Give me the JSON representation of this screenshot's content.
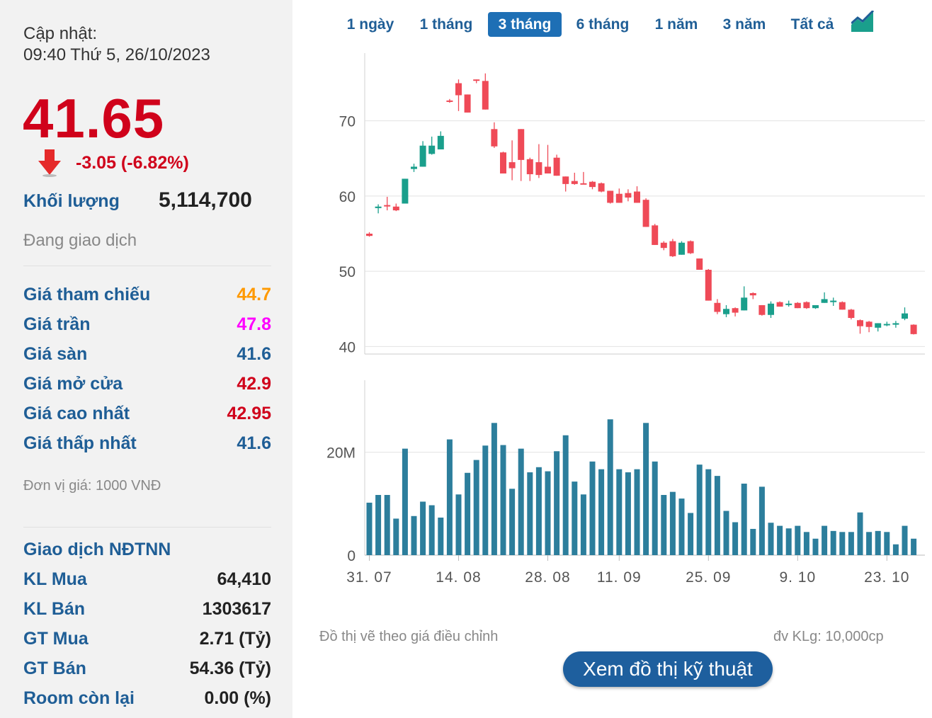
{
  "summary": {
    "updated_label": "Cập nhật:",
    "updated_time": "09:40 Thứ 5, 26/10/2023",
    "price": "41.65",
    "change": "-3.05 (-6.82%)",
    "volume_label": "Khối lượng",
    "volume_value": "5,114,700",
    "status": "Đang giao dịch"
  },
  "prices": [
    {
      "label": "Giá tham chiếu",
      "value": "44.7",
      "color": "#ff9900"
    },
    {
      "label": "Giá trần",
      "value": "47.8",
      "color": "#ff00ff"
    },
    {
      "label": "Giá sàn",
      "value": "41.6",
      "color": "#1f5e96"
    },
    {
      "label": "Giá mở cửa",
      "value": "42.9",
      "color": "#d0021b"
    },
    {
      "label": "Giá cao nhất",
      "value": "42.95",
      "color": "#d0021b"
    },
    {
      "label": "Giá thấp nhất",
      "value": "41.6",
      "color": "#1f5e96"
    }
  ],
  "unit_note": "Đơn vị giá: 1000 VNĐ",
  "foreign": {
    "title": "Giao dịch NĐTNN",
    "rows": [
      {
        "label": "KL Mua",
        "value": "64,410"
      },
      {
        "label": "KL Bán",
        "value": "1303617"
      },
      {
        "label": "GT Mua",
        "value": "2.71 (Tỷ)"
      },
      {
        "label": "GT Bán",
        "value": "54.36 (Tỷ)"
      },
      {
        "label": "Room còn lại",
        "value": "0.00 (%)"
      }
    ]
  },
  "tabs": [
    {
      "label": "1 ngày",
      "active": false
    },
    {
      "label": "1 tháng",
      "active": false
    },
    {
      "label": "3 tháng",
      "active": true
    },
    {
      "label": "6 tháng",
      "active": false
    },
    {
      "label": "1 năm",
      "active": false
    },
    {
      "label": "3 năm",
      "active": false
    },
    {
      "label": "Tất cả",
      "active": false
    }
  ],
  "chart_icon": "area-chart-icon",
  "colors": {
    "up": "#1a9f8c",
    "down": "#ef4a57",
    "volume": "#2c7e9c",
    "accent": "#1e6fb5"
  },
  "chart_data": {
    "type": "candlestick",
    "price_axis": {
      "ticks": [
        40,
        50,
        60,
        70
      ],
      "range": [
        39,
        79
      ]
    },
    "volume_axis": {
      "ticks": [
        0,
        20
      ],
      "tick_labels": [
        "0",
        "20M"
      ],
      "range": [
        0,
        34
      ]
    },
    "x_labels": [
      {
        "label": "31. 07",
        "index": 0
      },
      {
        "label": "14. 08",
        "index": 10
      },
      {
        "label": "28. 08",
        "index": 20
      },
      {
        "label": "11. 09",
        "index": 28
      },
      {
        "label": "25. 09",
        "index": 38
      },
      {
        "label": "9. 10",
        "index": 48
      },
      {
        "label": "23. 10",
        "index": 58
      }
    ],
    "candles": [
      {
        "o": 55.0,
        "h": 55.2,
        "c": 54.7,
        "l": 54.6,
        "v": 10.2
      },
      {
        "o": 58.4,
        "h": 58.9,
        "c": 58.6,
        "l": 57.7,
        "v": 11.7
      },
      {
        "o": 58.8,
        "h": 59.9,
        "c": 58.7,
        "l": 58.1,
        "v": 11.7
      },
      {
        "o": 58.6,
        "h": 59.0,
        "c": 58.1,
        "l": 58.0,
        "v": 7.1
      },
      {
        "o": 59.0,
        "h": 62.3,
        "c": 62.3,
        "l": 59.0,
        "v": 20.7
      },
      {
        "o": 63.6,
        "h": 64.3,
        "c": 63.9,
        "l": 63.2,
        "v": 7.6
      },
      {
        "o": 63.9,
        "h": 67.3,
        "c": 66.7,
        "l": 63.9,
        "v": 10.4
      },
      {
        "o": 65.6,
        "h": 67.9,
        "c": 66.7,
        "l": 65.5,
        "v": 9.7
      },
      {
        "o": 66.2,
        "h": 68.6,
        "c": 68.0,
        "l": 66.2,
        "v": 7.3
      },
      {
        "o": 72.7,
        "h": 72.9,
        "c": 72.6,
        "l": 72.4,
        "v": 22.5
      },
      {
        "o": 75.0,
        "h": 75.5,
        "c": 73.4,
        "l": 71.3,
        "v": 11.8
      },
      {
        "o": 73.5,
        "h": 73.5,
        "c": 71.1,
        "l": 71.1,
        "v": 16.0
      },
      {
        "o": 75.5,
        "h": 75.5,
        "c": 75.4,
        "l": 75.0,
        "v": 18.5
      },
      {
        "o": 75.3,
        "h": 76.3,
        "c": 71.5,
        "l": 71.5,
        "v": 21.3
      },
      {
        "o": 68.9,
        "h": 69.8,
        "c": 66.6,
        "l": 66.4,
        "v": 25.7
      },
      {
        "o": 65.8,
        "h": 65.9,
        "c": 63.0,
        "l": 63.0,
        "v": 21.4
      },
      {
        "o": 64.5,
        "h": 67.4,
        "c": 63.7,
        "l": 62.1,
        "v": 12.9
      },
      {
        "o": 68.9,
        "h": 68.9,
        "c": 64.8,
        "l": 62.0,
        "v": 20.7
      },
      {
        "o": 64.9,
        "h": 65.1,
        "c": 62.9,
        "l": 62.0,
        "v": 16.1
      },
      {
        "o": 64.5,
        "h": 66.9,
        "c": 62.8,
        "l": 62.4,
        "v": 17.1
      },
      {
        "o": 63.9,
        "h": 66.8,
        "c": 63.0,
        "l": 63.0,
        "v": 16.3
      },
      {
        "o": 65.1,
        "h": 65.5,
        "c": 62.7,
        "l": 62.7,
        "v": 20.2
      },
      {
        "o": 62.6,
        "h": 62.6,
        "c": 61.6,
        "l": 60.6,
        "v": 23.3
      },
      {
        "o": 62.0,
        "h": 63.1,
        "c": 61.6,
        "l": 61.5,
        "v": 14.3
      },
      {
        "o": 61.7,
        "h": 63.2,
        "c": 61.6,
        "l": 61.6,
        "v": 11.8
      },
      {
        "o": 61.9,
        "h": 62.0,
        "c": 61.2,
        "l": 60.9,
        "v": 18.2
      },
      {
        "o": 61.7,
        "h": 61.8,
        "c": 60.6,
        "l": 60.5,
        "v": 16.7
      },
      {
        "o": 60.7,
        "h": 60.7,
        "c": 59.1,
        "l": 59.0,
        "v": 26.4
      },
      {
        "o": 60.3,
        "h": 61.0,
        "c": 59.1,
        "l": 59.1,
        "v": 16.7
      },
      {
        "o": 60.4,
        "h": 60.9,
        "c": 59.8,
        "l": 59.3,
        "v": 16.1
      },
      {
        "o": 60.6,
        "h": 61.3,
        "c": 59.1,
        "l": 59.1,
        "v": 16.7
      },
      {
        "o": 59.5,
        "h": 59.7,
        "c": 55.9,
        "l": 55.9,
        "v": 25.7
      },
      {
        "o": 56.1,
        "h": 56.3,
        "c": 53.5,
        "l": 53.5,
        "v": 18.2
      },
      {
        "o": 53.8,
        "h": 54.0,
        "c": 53.1,
        "l": 52.8,
        "v": 11.7
      },
      {
        "o": 54.0,
        "h": 54.3,
        "c": 52.0,
        "l": 51.9,
        "v": 12.3
      },
      {
        "o": 52.2,
        "h": 54.0,
        "c": 53.8,
        "l": 52.2,
        "v": 11.0
      },
      {
        "o": 54.0,
        "h": 54.1,
        "c": 52.4,
        "l": 52.3,
        "v": 8.2
      },
      {
        "o": 51.7,
        "h": 51.7,
        "c": 50.2,
        "l": 50.2,
        "v": 17.6
      },
      {
        "o": 50.2,
        "h": 50.3,
        "c": 46.1,
        "l": 46.1,
        "v": 16.7
      },
      {
        "o": 45.8,
        "h": 46.3,
        "c": 44.6,
        "l": 44.3,
        "v": 15.4
      },
      {
        "o": 44.3,
        "h": 45.5,
        "c": 45.0,
        "l": 43.9,
        "v": 8.6
      },
      {
        "o": 45.1,
        "h": 45.2,
        "c": 44.5,
        "l": 44.0,
        "v": 6.4
      },
      {
        "o": 44.8,
        "h": 48.0,
        "c": 46.5,
        "l": 44.8,
        "v": 13.9
      },
      {
        "o": 47.1,
        "h": 47.2,
        "c": 46.8,
        "l": 46.3,
        "v": 5.1
      },
      {
        "o": 45.5,
        "h": 45.5,
        "c": 44.2,
        "l": 44.1,
        "v": 13.3
      },
      {
        "o": 44.2,
        "h": 46.0,
        "c": 45.7,
        "l": 43.8,
        "v": 6.3
      },
      {
        "o": 45.9,
        "h": 46.0,
        "c": 45.3,
        "l": 45.3,
        "v": 5.7
      },
      {
        "o": 45.6,
        "h": 46.1,
        "c": 45.7,
        "l": 45.3,
        "v": 5.2
      },
      {
        "o": 45.8,
        "h": 45.9,
        "c": 45.1,
        "l": 45.1,
        "v": 5.7
      },
      {
        "o": 45.9,
        "h": 46.0,
        "c": 45.1,
        "l": 45.0,
        "v": 4.5
      },
      {
        "o": 45.1,
        "h": 45.2,
        "c": 45.5,
        "l": 45.0,
        "v": 3.2
      },
      {
        "o": 45.8,
        "h": 47.2,
        "c": 46.3,
        "l": 45.8,
        "v": 5.7
      },
      {
        "o": 45.9,
        "h": 46.5,
        "c": 46.1,
        "l": 45.4,
        "v": 4.7
      },
      {
        "o": 45.9,
        "h": 46.0,
        "c": 44.9,
        "l": 44.9,
        "v": 4.5
      },
      {
        "o": 44.9,
        "h": 45.0,
        "c": 43.8,
        "l": 43.6,
        "v": 4.5
      },
      {
        "o": 43.5,
        "h": 43.6,
        "c": 42.7,
        "l": 41.7,
        "v": 8.3
      },
      {
        "o": 43.3,
        "h": 43.4,
        "c": 42.6,
        "l": 41.9,
        "v": 4.5
      },
      {
        "o": 42.5,
        "h": 43.1,
        "c": 43.1,
        "l": 42.0,
        "v": 4.7
      },
      {
        "o": 43.0,
        "h": 43.3,
        "c": 43.0,
        "l": 42.7,
        "v": 4.5
      },
      {
        "o": 42.9,
        "h": 43.4,
        "c": 43.1,
        "l": 42.5,
        "v": 2.1
      },
      {
        "o": 43.7,
        "h": 45.2,
        "c": 44.4,
        "l": 43.5,
        "v": 5.7
      },
      {
        "o": 42.9,
        "h": 42.95,
        "c": 41.65,
        "l": 41.6,
        "v": 3.2
      }
    ]
  },
  "notes": {
    "left": "Đồ thị vẽ theo giá điều chỉnh",
    "right": "đv KLg: 10,000cp"
  },
  "technical_button": "Xem đồ thị kỹ thuật"
}
